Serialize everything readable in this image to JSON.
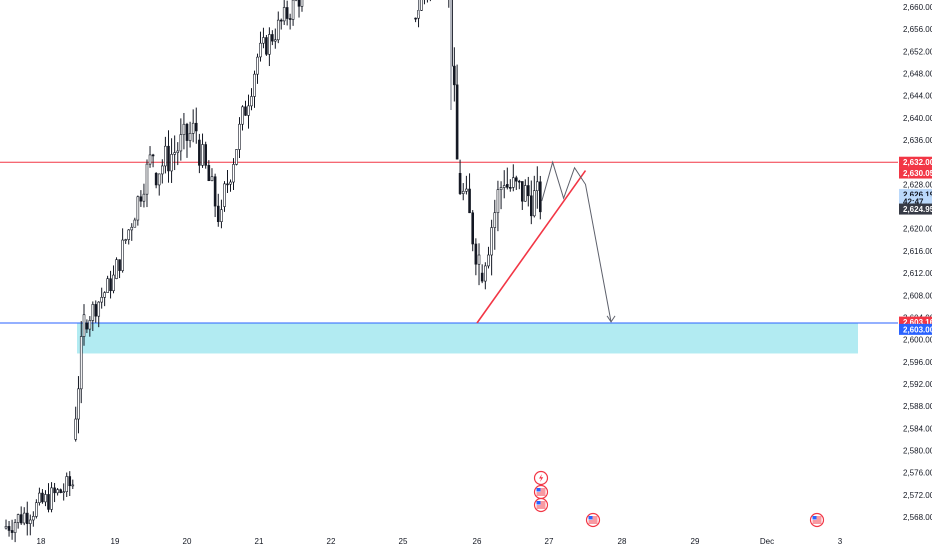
{
  "chart_data": {
    "type": "candlestick",
    "x_tick_labels": [
      "18",
      "19",
      "20",
      "21",
      "22",
      "25",
      "26",
      "27",
      "28",
      "29",
      "Dec",
      "3"
    ],
    "y_tick_labels": [
      "2,660.00",
      "2,656.00",
      "2,652.00",
      "2,648.00",
      "2,644.00",
      "2,640.00",
      "2,636.00",
      "2,632.00",
      "2,628.00",
      "2,624.00",
      "2,620.00",
      "2,616.00",
      "2,612.00",
      "2,608.00",
      "2,604.00",
      "2,600.00",
      "2,596.00",
      "2,592.00",
      "2,588.00",
      "2,584.00",
      "2,580.00",
      "2,576.00",
      "2,572.00",
      "2,568.00"
    ],
    "ylim": [
      2566.5,
      2661
    ],
    "price_badges": [
      {
        "label": "2,632.00",
        "value": 2632.0,
        "color": "#f23645"
      },
      {
        "label": "2,630.05",
        "value": 2630.05,
        "color": "#f23645"
      },
      {
        "label": "2,626.19",
        "value": 2626.19,
        "color": "#bbd9fb",
        "text_color": "#131722"
      },
      {
        "label": "42:47",
        "value": 2624.9,
        "color": "#bbd9fb",
        "text_color": "#131722"
      },
      {
        "label": "2,624.95",
        "value": 2623.55,
        "color": "#363a45"
      },
      {
        "label": "2,603.16",
        "value": 2603.16,
        "color": "#f23645"
      },
      {
        "label": "2,603.00",
        "value": 2601.85,
        "color": "#2962ff"
      }
    ],
    "horizontal_lines": [
      {
        "value": 2632.0,
        "color": "#f23645"
      },
      {
        "value": 2603.0,
        "color": "#2962ff"
      }
    ],
    "zone": {
      "from": 2603.0,
      "to": 2597.5,
      "color": "#b2ebf2"
    },
    "trendline_points": [
      [
        26.0,
        2603.0
      ],
      [
        27.5,
        2630.5
      ]
    ],
    "projection_path": [
      [
        26.9,
        2625.0
      ],
      [
        27.05,
        2632.0
      ],
      [
        27.2,
        2625.5
      ],
      [
        27.35,
        2631.0
      ],
      [
        27.5,
        2628.0
      ],
      [
        27.85,
        2603.2
      ]
    ],
    "colors": {
      "up": "#ffffff",
      "down": "#131722",
      "wick": "#131722",
      "grid": "#ffffff",
      "muted": "#b2b5be"
    },
    "candles_gen": {
      "segments": [
        {
          "from": 17.5,
          "to": 18.45,
          "open": 2566.0,
          "close": 2574.0,
          "vol": 2.2
        },
        {
          "from": 18.45,
          "to": 18.6,
          "open": 2582.0,
          "close": 2603.0,
          "vol": 3.0
        },
        {
          "from": 18.6,
          "to": 19.0,
          "open": 2603.0,
          "close": 2611.0,
          "vol": 2.0
        },
        {
          "from": 19.0,
          "to": 19.55,
          "open": 2611.0,
          "close": 2634.0,
          "vol": 2.5
        },
        {
          "from": 19.55,
          "to": 20.15,
          "open": 2630.0,
          "close": 2638.0,
          "vol": 3.2
        },
        {
          "from": 20.15,
          "to": 20.5,
          "open": 2636.0,
          "close": 2621.0,
          "vol": 3.0
        },
        {
          "from": 20.5,
          "to": 21.0,
          "open": 2624.0,
          "close": 2651.0,
          "vol": 2.8
        },
        {
          "from": 21.0,
          "to": 21.7,
          "open": 2651.0,
          "close": 2664.0,
          "vol": 2.2
        }
      ],
      "segments_late": [
        {
          "from": 25.15,
          "to": 25.55,
          "open": 2658.0,
          "close": 2668.0,
          "vol": 2.0
        },
        {
          "from": 25.6,
          "to": 25.75,
          "open": 2672.0,
          "close": 2632.0,
          "vol": 4.0
        },
        {
          "from": 25.75,
          "to": 26.05,
          "open": 2630.0,
          "close": 2615.0,
          "vol": 4.0
        },
        {
          "from": 26.05,
          "to": 26.4,
          "open": 2612.0,
          "close": 2630.0,
          "vol": 4.5
        },
        {
          "from": 26.4,
          "to": 26.9,
          "open": 2628.0,
          "close": 2624.95,
          "vol": 3.5
        }
      ]
    }
  }
}
